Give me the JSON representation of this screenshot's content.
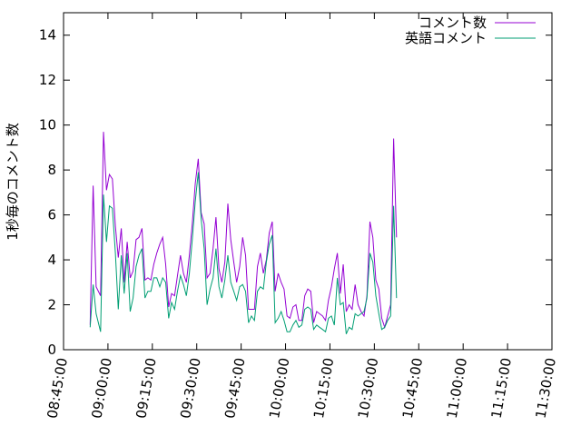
{
  "chart_data": {
    "type": "line",
    "title": "",
    "xlabel": "",
    "ylabel": "1秒毎のコメント数",
    "xlim": [
      "08:45:00",
      "11:30:00"
    ],
    "ylim": [
      0,
      15
    ],
    "xticks": [
      "08:45:00",
      "09:00:00",
      "09:15:00",
      "09:30:00",
      "09:45:00",
      "10:00:00",
      "10:15:00",
      "10:30:00",
      "10:45:00",
      "11:00:00",
      "11:15:00",
      "11:30:00"
    ],
    "yticks": [
      0,
      2,
      4,
      6,
      8,
      10,
      12,
      14
    ],
    "grid": false,
    "legend_position": "top-right",
    "series": [
      {
        "name": "コメント数",
        "color": "#9400d3",
        "points": [
          [
            "08:54:00",
            1.1
          ],
          [
            "08:55:00",
            7.3
          ],
          [
            "08:56:00",
            2.8
          ],
          [
            "08:57:30",
            2.4
          ],
          [
            "08:58:30",
            9.7
          ],
          [
            "08:59:30",
            7.1
          ],
          [
            "09:00:30",
            7.8
          ],
          [
            "09:01:30",
            7.6
          ],
          [
            "09:02:30",
            5.5
          ],
          [
            "09:03:30",
            4.1
          ],
          [
            "09:04:30",
            5.4
          ],
          [
            "09:05:30",
            3.0
          ],
          [
            "09:06:30",
            4.8
          ],
          [
            "09:07:30",
            3.2
          ],
          [
            "09:08:30",
            3.5
          ],
          [
            "09:09:30",
            4.9
          ],
          [
            "09:10:30",
            5.0
          ],
          [
            "09:11:30",
            5.4
          ],
          [
            "09:12:30",
            3.1
          ],
          [
            "09:13:30",
            3.2
          ],
          [
            "09:14:30",
            3.1
          ],
          [
            "09:15:30",
            3.8
          ],
          [
            "09:16:30",
            4.3
          ],
          [
            "09:17:30",
            4.7
          ],
          [
            "09:18:30",
            5.0
          ],
          [
            "09:19:30",
            3.8
          ],
          [
            "09:20:30",
            1.9
          ],
          [
            "09:21:30",
            2.5
          ],
          [
            "09:22:30",
            2.4
          ],
          [
            "09:23:30",
            3.3
          ],
          [
            "09:24:30",
            4.2
          ],
          [
            "09:25:30",
            3.4
          ],
          [
            "09:26:30",
            3.0
          ],
          [
            "09:27:30",
            4.2
          ],
          [
            "09:28:30",
            5.6
          ],
          [
            "09:29:30",
            7.4
          ],
          [
            "09:30:30",
            8.5
          ],
          [
            "09:31:30",
            6.1
          ],
          [
            "09:32:30",
            5.6
          ],
          [
            "09:33:30",
            3.2
          ],
          [
            "09:34:30",
            3.4
          ],
          [
            "09:35:30",
            4.5
          ],
          [
            "09:36:30",
            5.9
          ],
          [
            "09:37:30",
            3.6
          ],
          [
            "09:38:30",
            3.0
          ],
          [
            "09:39:30",
            3.9
          ],
          [
            "09:40:30",
            6.5
          ],
          [
            "09:41:30",
            4.9
          ],
          [
            "09:42:30",
            3.9
          ],
          [
            "09:43:30",
            3.0
          ],
          [
            "09:44:30",
            3.7
          ],
          [
            "09:45:30",
            5.0
          ],
          [
            "09:46:30",
            4.2
          ],
          [
            "09:47:30",
            1.8
          ],
          [
            "09:48:30",
            1.8
          ],
          [
            "09:49:30",
            1.8
          ],
          [
            "09:50:30",
            3.7
          ],
          [
            "09:51:30",
            4.3
          ],
          [
            "09:52:30",
            3.4
          ],
          [
            "09:53:30",
            4.0
          ],
          [
            "09:54:30",
            5.2
          ],
          [
            "09:55:30",
            5.7
          ],
          [
            "09:56:30",
            2.6
          ],
          [
            "09:57:30",
            3.4
          ],
          [
            "09:58:30",
            3.0
          ],
          [
            "09:59:30",
            2.7
          ],
          [
            "10:00:30",
            1.5
          ],
          [
            "10:01:30",
            1.4
          ],
          [
            "10:02:30",
            1.9
          ],
          [
            "10:03:30",
            2.0
          ],
          [
            "10:04:30",
            1.3
          ],
          [
            "10:05:30",
            1.3
          ],
          [
            "10:06:30",
            2.4
          ],
          [
            "10:07:30",
            2.7
          ],
          [
            "10:08:30",
            2.6
          ],
          [
            "10:09:30",
            1.2
          ],
          [
            "10:10:30",
            1.7
          ],
          [
            "10:11:30",
            1.6
          ],
          [
            "10:12:30",
            1.5
          ],
          [
            "10:13:30",
            1.3
          ],
          [
            "10:14:30",
            2.2
          ],
          [
            "10:15:30",
            2.8
          ],
          [
            "10:16:30",
            3.6
          ],
          [
            "10:17:30",
            4.3
          ],
          [
            "10:18:30",
            2.5
          ],
          [
            "10:19:30",
            3.8
          ],
          [
            "10:20:30",
            1.7
          ],
          [
            "10:21:30",
            2.0
          ],
          [
            "10:22:30",
            1.8
          ],
          [
            "10:23:30",
            2.9
          ],
          [
            "10:24:30",
            2.0
          ],
          [
            "10:25:30",
            1.7
          ],
          [
            "10:26:30",
            1.5
          ],
          [
            "10:27:30",
            2.4
          ],
          [
            "10:28:30",
            5.7
          ],
          [
            "10:29:30",
            5.0
          ],
          [
            "10:30:30",
            3.1
          ],
          [
            "10:31:30",
            2.7
          ],
          [
            "10:32:30",
            1.4
          ],
          [
            "10:33:30",
            1.0
          ],
          [
            "10:34:30",
            1.5
          ],
          [
            "10:35:30",
            2.0
          ],
          [
            "10:36:30",
            9.4
          ],
          [
            "10:37:30",
            5.0
          ]
        ]
      },
      {
        "name": "英語コメント",
        "color": "#009e73",
        "points": [
          [
            "08:54:00",
            1.0
          ],
          [
            "08:55:00",
            2.9
          ],
          [
            "08:56:00",
            1.6
          ],
          [
            "08:57:30",
            0.8
          ],
          [
            "08:58:30",
            6.9
          ],
          [
            "08:59:30",
            4.8
          ],
          [
            "09:00:30",
            6.4
          ],
          [
            "09:01:30",
            6.3
          ],
          [
            "09:02:30",
            4.3
          ],
          [
            "09:03:30",
            1.8
          ],
          [
            "09:04:30",
            4.2
          ],
          [
            "09:05:30",
            2.5
          ],
          [
            "09:06:30",
            4.3
          ],
          [
            "09:07:30",
            1.7
          ],
          [
            "09:08:30",
            2.3
          ],
          [
            "09:09:30",
            3.7
          ],
          [
            "09:10:30",
            4.2
          ],
          [
            "09:11:30",
            4.5
          ],
          [
            "09:12:30",
            2.3
          ],
          [
            "09:13:30",
            2.6
          ],
          [
            "09:14:30",
            2.6
          ],
          [
            "09:15:30",
            3.2
          ],
          [
            "09:16:30",
            3.2
          ],
          [
            "09:17:30",
            2.8
          ],
          [
            "09:18:30",
            3.2
          ],
          [
            "09:19:30",
            3.0
          ],
          [
            "09:20:30",
            1.4
          ],
          [
            "09:21:30",
            2.1
          ],
          [
            "09:22:30",
            1.8
          ],
          [
            "09:23:30",
            2.6
          ],
          [
            "09:24:30",
            3.3
          ],
          [
            "09:25:30",
            2.9
          ],
          [
            "09:26:30",
            2.4
          ],
          [
            "09:27:30",
            3.4
          ],
          [
            "09:28:30",
            4.9
          ],
          [
            "09:29:30",
            6.6
          ],
          [
            "09:30:30",
            7.9
          ],
          [
            "09:31:30",
            5.8
          ],
          [
            "09:32:30",
            4.5
          ],
          [
            "09:33:30",
            2.0
          ],
          [
            "09:34:30",
            2.7
          ],
          [
            "09:35:30",
            3.2
          ],
          [
            "09:36:30",
            4.5
          ],
          [
            "09:37:30",
            2.8
          ],
          [
            "09:38:30",
            2.3
          ],
          [
            "09:39:30",
            3.1
          ],
          [
            "09:40:30",
            4.2
          ],
          [
            "09:41:30",
            3.0
          ],
          [
            "09:42:30",
            2.6
          ],
          [
            "09:43:30",
            2.2
          ],
          [
            "09:44:30",
            2.8
          ],
          [
            "09:45:30",
            2.9
          ],
          [
            "09:46:30",
            2.6
          ],
          [
            "09:47:30",
            1.2
          ],
          [
            "09:48:30",
            1.5
          ],
          [
            "09:49:30",
            1.3
          ],
          [
            "09:50:30",
            2.6
          ],
          [
            "09:51:30",
            2.8
          ],
          [
            "09:52:30",
            2.7
          ],
          [
            "09:53:30",
            3.9
          ],
          [
            "09:54:30",
            4.7
          ],
          [
            "09:55:30",
            5.1
          ],
          [
            "09:56:30",
            1.2
          ],
          [
            "09:57:30",
            1.4
          ],
          [
            "09:58:30",
            1.7
          ],
          [
            "09:59:30",
            1.3
          ],
          [
            "10:00:30",
            0.8
          ],
          [
            "10:01:30",
            0.8
          ],
          [
            "10:02:30",
            1.1
          ],
          [
            "10:03:30",
            1.3
          ],
          [
            "10:04:30",
            1.0
          ],
          [
            "10:05:30",
            1.1
          ],
          [
            "10:06:30",
            1.8
          ],
          [
            "10:07:30",
            1.9
          ],
          [
            "10:08:30",
            1.8
          ],
          [
            "10:09:30",
            0.9
          ],
          [
            "10:10:30",
            1.1
          ],
          [
            "10:11:30",
            1.0
          ],
          [
            "10:12:30",
            0.9
          ],
          [
            "10:13:30",
            0.8
          ],
          [
            "10:14:30",
            1.4
          ],
          [
            "10:15:30",
            1.5
          ],
          [
            "10:16:30",
            1.1
          ],
          [
            "10:17:30",
            3.2
          ],
          [
            "10:18:30",
            2.0
          ],
          [
            "10:19:30",
            2.1
          ],
          [
            "10:20:30",
            0.7
          ],
          [
            "10:21:30",
            1.0
          ],
          [
            "10:22:30",
            0.9
          ],
          [
            "10:23:30",
            1.6
          ],
          [
            "10:24:30",
            1.5
          ],
          [
            "10:25:30",
            1.6
          ],
          [
            "10:26:30",
            1.7
          ],
          [
            "10:27:30",
            2.3
          ],
          [
            "10:28:30",
            4.3
          ],
          [
            "10:29:30",
            3.9
          ],
          [
            "10:30:30",
            2.4
          ],
          [
            "10:31:30",
            1.6
          ],
          [
            "10:32:30",
            0.9
          ],
          [
            "10:33:30",
            1.0
          ],
          [
            "10:34:30",
            1.3
          ],
          [
            "10:35:30",
            1.5
          ],
          [
            "10:36:30",
            6.4
          ],
          [
            "10:37:30",
            2.3
          ]
        ]
      }
    ]
  }
}
